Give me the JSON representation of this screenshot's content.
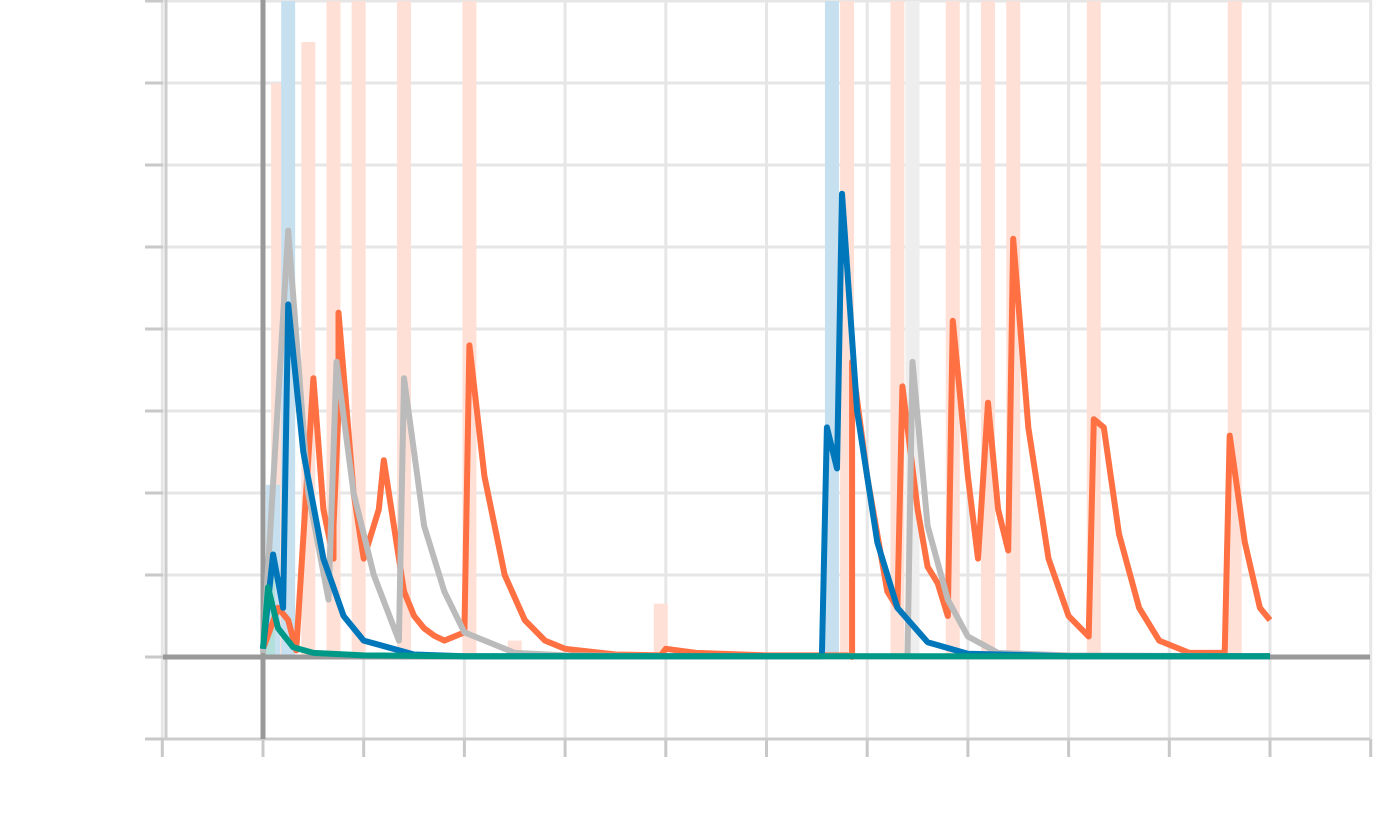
{
  "chart_data": {
    "type": "line",
    "title": "",
    "xlabel": "",
    "ylabel": "",
    "xlim": [
      -1,
      11
    ],
    "ylim": [
      -1,
      8
    ],
    "x_ticks": [
      -1,
      0,
      1,
      2,
      3,
      4,
      5,
      6,
      7,
      8,
      9,
      10,
      11
    ],
    "y_ticks": [
      -1,
      0,
      1,
      2,
      3,
      4,
      5,
      6,
      7,
      8
    ],
    "grid": true,
    "tick_labels_visible": false,
    "series": [
      {
        "color": "#ff7043",
        "raw_color": "#ffe0d6",
        "points": [
          [
            0.0,
            0.1
          ],
          [
            0.15,
            0.6
          ],
          [
            0.25,
            0.45
          ],
          [
            0.33,
            0.08
          ],
          [
            0.5,
            3.4
          ],
          [
            0.6,
            1.8
          ],
          [
            0.7,
            1.2
          ],
          [
            0.7,
            1.6
          ],
          [
            0.75,
            3.0
          ],
          [
            0.75,
            4.2
          ],
          [
            0.9,
            2.0
          ],
          [
            1.0,
            1.2
          ],
          [
            1.15,
            1.8
          ],
          [
            1.2,
            2.4
          ],
          [
            1.3,
            1.6
          ],
          [
            1.4,
            0.8
          ],
          [
            1.5,
            0.5
          ],
          [
            1.6,
            0.35
          ],
          [
            1.7,
            0.26
          ],
          [
            1.8,
            0.2
          ],
          [
            2.0,
            0.3
          ],
          [
            2.05,
            3.8
          ],
          [
            2.2,
            2.2
          ],
          [
            2.4,
            1.0
          ],
          [
            2.6,
            0.45
          ],
          [
            2.8,
            0.2
          ],
          [
            3.0,
            0.1
          ],
          [
            3.5,
            0.03
          ],
          [
            3.95,
            0.02
          ],
          [
            4.0,
            0.1
          ],
          [
            4.3,
            0.05
          ],
          [
            5.0,
            0.02
          ],
          [
            5.8,
            0.02
          ],
          [
            5.85,
            0.0
          ],
          [
            5.85,
            3.6
          ],
          [
            6.0,
            2.2
          ],
          [
            6.2,
            0.8
          ],
          [
            6.3,
            0.6
          ],
          [
            6.35,
            3.3
          ],
          [
            6.5,
            1.8
          ],
          [
            6.6,
            1.1
          ],
          [
            6.7,
            0.9
          ],
          [
            6.8,
            0.5
          ],
          [
            6.85,
            4.1
          ],
          [
            7.0,
            2.2
          ],
          [
            7.1,
            1.2
          ],
          [
            7.2,
            3.1
          ],
          [
            7.3,
            1.8
          ],
          [
            7.4,
            1.3
          ],
          [
            7.45,
            5.1
          ],
          [
            7.6,
            2.8
          ],
          [
            7.8,
            1.2
          ],
          [
            8.0,
            0.5
          ],
          [
            8.2,
            0.25
          ],
          [
            8.25,
            2.9
          ],
          [
            8.35,
            2.8
          ],
          [
            8.5,
            1.5
          ],
          [
            8.7,
            0.6
          ],
          [
            8.9,
            0.2
          ],
          [
            9.2,
            0.05
          ],
          [
            9.55,
            0.05
          ],
          [
            9.6,
            2.7
          ],
          [
            9.75,
            1.4
          ],
          [
            9.9,
            0.6
          ],
          [
            10.0,
            0.45
          ]
        ],
        "raw_bars": [
          [
            0.15,
            7.0
          ],
          [
            0.45,
            7.5
          ],
          [
            0.7,
            8.0
          ],
          [
            0.95,
            8.0
          ],
          [
            1.4,
            8.0
          ],
          [
            2.05,
            8.0
          ],
          [
            3.95,
            0.65
          ],
          [
            5.8,
            8.0
          ],
          [
            6.3,
            8.0
          ],
          [
            6.85,
            8.0
          ],
          [
            7.2,
            8.0
          ],
          [
            7.45,
            8.0
          ],
          [
            8.25,
            8.0
          ],
          [
            9.65,
            8.0
          ],
          [
            2.5,
            0.2
          ]
        ]
      },
      {
        "color": "#bbbbbb",
        "raw_color": "#eeeeee",
        "points": [
          [
            0.0,
            0.05
          ],
          [
            0.25,
            5.2
          ],
          [
            0.45,
            2.0
          ],
          [
            0.65,
            0.7
          ],
          [
            0.73,
            3.6
          ],
          [
            0.9,
            2.0
          ],
          [
            1.1,
            1.0
          ],
          [
            1.35,
            0.2
          ],
          [
            1.4,
            3.4
          ],
          [
            1.6,
            1.6
          ],
          [
            1.8,
            0.8
          ],
          [
            2.0,
            0.3
          ],
          [
            2.5,
            0.05
          ],
          [
            3.0,
            0.02
          ],
          [
            4.0,
            0.01
          ],
          [
            6.4,
            0.01
          ],
          [
            6.45,
            3.6
          ],
          [
            6.6,
            1.6
          ],
          [
            6.8,
            0.7
          ],
          [
            7.0,
            0.25
          ],
          [
            7.3,
            0.05
          ],
          [
            8.0,
            0.02
          ],
          [
            10.0,
            0.01
          ]
        ],
        "raw_bars": [
          [
            6.45,
            8.0
          ]
        ]
      },
      {
        "color": "#0077bb",
        "raw_color": "#c6e0f0",
        "points": [
          [
            0.0,
            0.1
          ],
          [
            0.1,
            1.25
          ],
          [
            0.2,
            0.6
          ],
          [
            0.25,
            4.3
          ],
          [
            0.4,
            2.5
          ],
          [
            0.6,
            1.2
          ],
          [
            0.8,
            0.5
          ],
          [
            1.0,
            0.2
          ],
          [
            1.5,
            0.03
          ],
          [
            2.0,
            0.01
          ],
          [
            5.55,
            0.01
          ],
          [
            5.6,
            2.8
          ],
          [
            5.7,
            2.3
          ],
          [
            5.75,
            5.65
          ],
          [
            5.9,
            3.0
          ],
          [
            6.1,
            1.4
          ],
          [
            6.3,
            0.6
          ],
          [
            6.6,
            0.18
          ],
          [
            7.0,
            0.04
          ],
          [
            8.0,
            0.01
          ],
          [
            10.0,
            0.01
          ]
        ],
        "raw_bars": [
          [
            0.1,
            2.1
          ],
          [
            0.25,
            8.0
          ],
          [
            5.65,
            8.0
          ]
        ]
      },
      {
        "color": "#009988",
        "raw_color": "#b3e0da",
        "points": [
          [
            0.0,
            0.1
          ],
          [
            0.05,
            0.85
          ],
          [
            0.15,
            0.35
          ],
          [
            0.3,
            0.12
          ],
          [
            0.5,
            0.05
          ],
          [
            1.0,
            0.02
          ],
          [
            2.0,
            0.01
          ],
          [
            10.0,
            0.01
          ]
        ],
        "raw_bars": [
          [
            0.05,
            1.0
          ]
        ]
      }
    ]
  }
}
